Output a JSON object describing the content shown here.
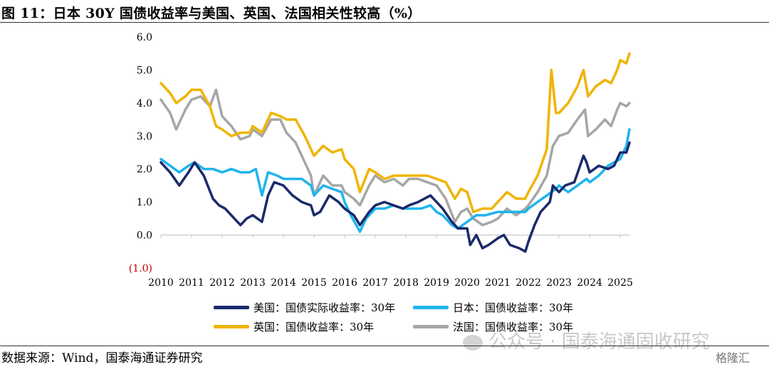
{
  "figure": {
    "title": "图 11：日本 30Y 国债收益率与美国、英国、法国相关性较高（%）",
    "source": "数据来源：Wind，国泰海通证券研究",
    "watermark": "公众号 · 国泰海通固收研究",
    "badge": "格隆汇"
  },
  "colors": {
    "us": "#1b2a6b",
    "jp": "#1fb4ec",
    "uk": "#f0b400",
    "fr": "#a6a6a6",
    "negative_label": "#c00000"
  },
  "chart_data": {
    "type": "line",
    "title": "",
    "xlabel": "",
    "ylabel": "",
    "ylim": [
      -1.0,
      6.0
    ],
    "xlim": [
      2010,
      2025.3
    ],
    "y_ticks": [
      "(1.0)",
      "0.0",
      "1.0",
      "2.0",
      "3.0",
      "4.0",
      "5.0",
      "6.0"
    ],
    "x_ticks": [
      "2010",
      "2011",
      "2012",
      "2013",
      "2014",
      "2015",
      "2016",
      "2017",
      "2018",
      "2019",
      "2020",
      "2021",
      "2022",
      "2023",
      "2024",
      "2025"
    ],
    "grid": false,
    "legend": "bottom",
    "series": [
      {
        "key": "us",
        "name": "美国：国债实际收益率：30年",
        "points": [
          [
            2010.0,
            2.2
          ],
          [
            2010.3,
            1.9
          ],
          [
            2010.6,
            1.5
          ],
          [
            2010.9,
            1.9
          ],
          [
            2011.1,
            2.2
          ],
          [
            2011.4,
            1.8
          ],
          [
            2011.7,
            1.1
          ],
          [
            2011.9,
            0.9
          ],
          [
            2012.1,
            0.8
          ],
          [
            2012.4,
            0.5
          ],
          [
            2012.6,
            0.3
          ],
          [
            2012.8,
            0.5
          ],
          [
            2013.0,
            0.6
          ],
          [
            2013.3,
            0.4
          ],
          [
            2013.5,
            1.2
          ],
          [
            2013.7,
            1.6
          ],
          [
            2014.0,
            1.5
          ],
          [
            2014.3,
            1.2
          ],
          [
            2014.6,
            1.0
          ],
          [
            2014.9,
            0.9
          ],
          [
            2015.0,
            0.6
          ],
          [
            2015.2,
            0.7
          ],
          [
            2015.5,
            1.2
          ],
          [
            2015.8,
            1.0
          ],
          [
            2016.0,
            0.8
          ],
          [
            2016.3,
            0.6
          ],
          [
            2016.5,
            0.3
          ],
          [
            2016.8,
            0.7
          ],
          [
            2017.0,
            0.9
          ],
          [
            2017.3,
            1.0
          ],
          [
            2017.6,
            0.9
          ],
          [
            2017.9,
            0.8
          ],
          [
            2018.1,
            0.9
          ],
          [
            2018.4,
            1.0
          ],
          [
            2018.8,
            1.2
          ],
          [
            2019.0,
            1.0
          ],
          [
            2019.2,
            0.8
          ],
          [
            2019.5,
            0.4
          ],
          [
            2019.7,
            0.2
          ],
          [
            2020.0,
            0.2
          ],
          [
            2020.1,
            -0.3
          ],
          [
            2020.3,
            0.0
          ],
          [
            2020.5,
            -0.4
          ],
          [
            2020.7,
            -0.3
          ],
          [
            2021.0,
            -0.1
          ],
          [
            2021.2,
            0.0
          ],
          [
            2021.4,
            -0.3
          ],
          [
            2021.7,
            -0.4
          ],
          [
            2021.9,
            -0.5
          ],
          [
            2022.0,
            -0.2
          ],
          [
            2022.2,
            0.3
          ],
          [
            2022.4,
            0.7
          ],
          [
            2022.7,
            1.0
          ],
          [
            2022.8,
            1.5
          ],
          [
            2023.0,
            1.3
          ],
          [
            2023.2,
            1.5
          ],
          [
            2023.5,
            1.6
          ],
          [
            2023.8,
            2.4
          ],
          [
            2023.9,
            2.2
          ],
          [
            2024.0,
            1.9
          ],
          [
            2024.3,
            2.1
          ],
          [
            2024.6,
            2.0
          ],
          [
            2024.8,
            2.1
          ],
          [
            2025.0,
            2.5
          ],
          [
            2025.2,
            2.5
          ],
          [
            2025.3,
            2.8
          ]
        ]
      },
      {
        "key": "jp",
        "name": "日本：国债收益率：30年",
        "points": [
          [
            2010.0,
            2.3
          ],
          [
            2010.3,
            2.1
          ],
          [
            2010.6,
            1.9
          ],
          [
            2010.9,
            2.1
          ],
          [
            2011.1,
            2.2
          ],
          [
            2011.4,
            2.0
          ],
          [
            2011.7,
            2.0
          ],
          [
            2012.0,
            1.9
          ],
          [
            2012.3,
            2.0
          ],
          [
            2012.6,
            1.9
          ],
          [
            2012.9,
            1.9
          ],
          [
            2013.1,
            2.0
          ],
          [
            2013.3,
            1.2
          ],
          [
            2013.5,
            1.9
          ],
          [
            2013.8,
            1.8
          ],
          [
            2014.0,
            1.7
          ],
          [
            2014.3,
            1.7
          ],
          [
            2014.6,
            1.7
          ],
          [
            2014.9,
            1.5
          ],
          [
            2015.0,
            1.2
          ],
          [
            2015.3,
            1.5
          ],
          [
            2015.6,
            1.4
          ],
          [
            2015.9,
            1.3
          ],
          [
            2016.0,
            1.0
          ],
          [
            2016.2,
            0.6
          ],
          [
            2016.5,
            0.1
          ],
          [
            2016.7,
            0.5
          ],
          [
            2017.0,
            0.8
          ],
          [
            2017.3,
            0.8
          ],
          [
            2017.6,
            0.9
          ],
          [
            2017.9,
            0.8
          ],
          [
            2018.2,
            0.8
          ],
          [
            2018.5,
            0.8
          ],
          [
            2018.8,
            0.9
          ],
          [
            2019.0,
            0.7
          ],
          [
            2019.2,
            0.6
          ],
          [
            2019.5,
            0.3
          ],
          [
            2019.7,
            0.2
          ],
          [
            2020.0,
            0.4
          ],
          [
            2020.3,
            0.6
          ],
          [
            2020.6,
            0.6
          ],
          [
            2021.0,
            0.7
          ],
          [
            2021.3,
            0.7
          ],
          [
            2021.6,
            0.7
          ],
          [
            2021.9,
            0.7
          ],
          [
            2022.0,
            0.8
          ],
          [
            2022.3,
            1.0
          ],
          [
            2022.6,
            1.2
          ],
          [
            2022.9,
            1.4
          ],
          [
            2023.0,
            1.5
          ],
          [
            2023.3,
            1.3
          ],
          [
            2023.6,
            1.5
          ],
          [
            2023.9,
            1.7
          ],
          [
            2024.0,
            1.6
          ],
          [
            2024.3,
            1.8
          ],
          [
            2024.6,
            2.1
          ],
          [
            2024.8,
            2.2
          ],
          [
            2025.0,
            2.3
          ],
          [
            2025.2,
            2.7
          ],
          [
            2025.3,
            3.2
          ]
        ]
      },
      {
        "key": "uk",
        "name": "英国：国债收益率：30年",
        "points": [
          [
            2010.0,
            4.6
          ],
          [
            2010.3,
            4.3
          ],
          [
            2010.5,
            4.0
          ],
          [
            2010.8,
            4.2
          ],
          [
            2011.0,
            4.4
          ],
          [
            2011.3,
            4.4
          ],
          [
            2011.6,
            3.9
          ],
          [
            2011.8,
            3.3
          ],
          [
            2012.0,
            3.2
          ],
          [
            2012.3,
            3.0
          ],
          [
            2012.6,
            3.1
          ],
          [
            2012.9,
            3.1
          ],
          [
            2013.0,
            3.3
          ],
          [
            2013.3,
            3.1
          ],
          [
            2013.6,
            3.7
          ],
          [
            2013.9,
            3.6
          ],
          [
            2014.1,
            3.5
          ],
          [
            2014.4,
            3.5
          ],
          [
            2014.7,
            3.0
          ],
          [
            2014.9,
            2.6
          ],
          [
            2015.0,
            2.4
          ],
          [
            2015.3,
            2.7
          ],
          [
            2015.6,
            2.5
          ],
          [
            2015.9,
            2.6
          ],
          [
            2016.0,
            2.3
          ],
          [
            2016.3,
            2.0
          ],
          [
            2016.5,
            1.3
          ],
          [
            2016.8,
            2.0
          ],
          [
            2017.0,
            1.9
          ],
          [
            2017.3,
            1.7
          ],
          [
            2017.6,
            1.8
          ],
          [
            2017.9,
            1.8
          ],
          [
            2018.1,
            1.8
          ],
          [
            2018.4,
            1.8
          ],
          [
            2018.7,
            1.8
          ],
          [
            2019.0,
            1.7
          ],
          [
            2019.3,
            1.6
          ],
          [
            2019.6,
            1.1
          ],
          [
            2019.8,
            1.4
          ],
          [
            2020.0,
            1.3
          ],
          [
            2020.2,
            0.7
          ],
          [
            2020.5,
            0.8
          ],
          [
            2020.8,
            0.8
          ],
          [
            2021.0,
            1.0
          ],
          [
            2021.3,
            1.3
          ],
          [
            2021.6,
            1.1
          ],
          [
            2021.9,
            1.1
          ],
          [
            2022.0,
            1.3
          ],
          [
            2022.3,
            1.8
          ],
          [
            2022.6,
            2.6
          ],
          [
            2022.75,
            5.0
          ],
          [
            2022.9,
            3.7
          ],
          [
            2023.0,
            3.7
          ],
          [
            2023.3,
            4.0
          ],
          [
            2023.6,
            4.5
          ],
          [
            2023.8,
            5.0
          ],
          [
            2023.95,
            4.2
          ],
          [
            2024.2,
            4.5
          ],
          [
            2024.5,
            4.7
          ],
          [
            2024.7,
            4.6
          ],
          [
            2024.9,
            5.0
          ],
          [
            2025.0,
            5.3
          ],
          [
            2025.2,
            5.2
          ],
          [
            2025.3,
            5.5
          ]
        ]
      },
      {
        "key": "fr",
        "name": "法国：国债收益率：30年",
        "points": [
          [
            2010.0,
            4.1
          ],
          [
            2010.3,
            3.7
          ],
          [
            2010.5,
            3.2
          ],
          [
            2010.8,
            3.8
          ],
          [
            2011.0,
            4.1
          ],
          [
            2011.3,
            4.2
          ],
          [
            2011.6,
            3.9
          ],
          [
            2011.8,
            4.4
          ],
          [
            2012.0,
            3.6
          ],
          [
            2012.3,
            3.3
          ],
          [
            2012.6,
            2.9
          ],
          [
            2012.9,
            3.0
          ],
          [
            2013.0,
            3.2
          ],
          [
            2013.3,
            3.0
          ],
          [
            2013.6,
            3.5
          ],
          [
            2013.9,
            3.5
          ],
          [
            2014.1,
            3.1
          ],
          [
            2014.4,
            2.8
          ],
          [
            2014.7,
            2.2
          ],
          [
            2014.9,
            1.8
          ],
          [
            2015.0,
            1.2
          ],
          [
            2015.3,
            1.8
          ],
          [
            2015.6,
            1.5
          ],
          [
            2015.9,
            1.5
          ],
          [
            2016.0,
            1.3
          ],
          [
            2016.3,
            1.1
          ],
          [
            2016.5,
            0.9
          ],
          [
            2016.8,
            1.5
          ],
          [
            2017.0,
            1.8
          ],
          [
            2017.3,
            1.6
          ],
          [
            2017.6,
            1.7
          ],
          [
            2017.9,
            1.5
          ],
          [
            2018.1,
            1.7
          ],
          [
            2018.4,
            1.7
          ],
          [
            2018.7,
            1.6
          ],
          [
            2019.0,
            1.5
          ],
          [
            2019.3,
            1.1
          ],
          [
            2019.6,
            0.4
          ],
          [
            2019.8,
            0.7
          ],
          [
            2020.0,
            0.8
          ],
          [
            2020.2,
            0.5
          ],
          [
            2020.5,
            0.3
          ],
          [
            2020.8,
            0.4
          ],
          [
            2021.0,
            0.5
          ],
          [
            2021.3,
            0.8
          ],
          [
            2021.6,
            0.6
          ],
          [
            2021.9,
            0.8
          ],
          [
            2022.0,
            0.9
          ],
          [
            2022.3,
            1.3
          ],
          [
            2022.6,
            1.8
          ],
          [
            2022.8,
            2.7
          ],
          [
            2023.0,
            3.0
          ],
          [
            2023.3,
            3.1
          ],
          [
            2023.6,
            3.5
          ],
          [
            2023.85,
            3.8
          ],
          [
            2023.95,
            3.0
          ],
          [
            2024.2,
            3.2
          ],
          [
            2024.5,
            3.5
          ],
          [
            2024.7,
            3.3
          ],
          [
            2024.9,
            3.8
          ],
          [
            2025.0,
            4.0
          ],
          [
            2025.2,
            3.9
          ],
          [
            2025.3,
            4.0
          ]
        ]
      }
    ]
  }
}
